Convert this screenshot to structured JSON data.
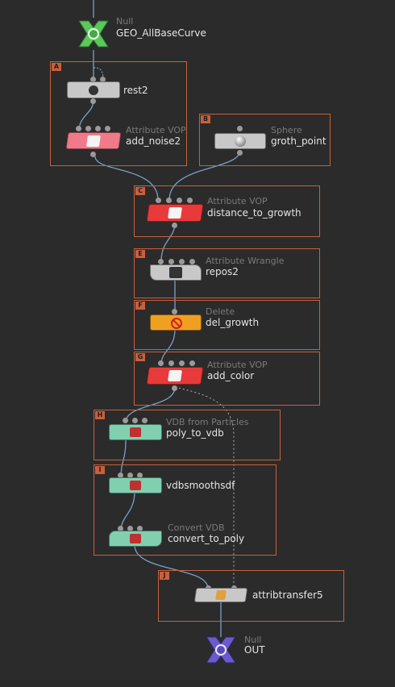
{
  "nodes": {
    "geo_allbasecurve": {
      "type": "Null",
      "name": "GEO_AllBaseCurve",
      "color": "#5ac85a"
    },
    "rest2": {
      "type": "",
      "name": "rest2",
      "color": "#c8c8c8"
    },
    "add_noise2": {
      "type": "Attribute VOP",
      "name": "add_noise2",
      "color": "#f07a8a"
    },
    "groth_point": {
      "type": "Sphere",
      "name": "groth_point",
      "color": "#c8c8c8"
    },
    "distance_to_growth": {
      "type": "Attribute VOP",
      "name": "distance_to_growth",
      "color": "#e83a3a"
    },
    "repos2": {
      "type": "Attribute Wrangle",
      "name": "repos2",
      "color": "#c8c8c8"
    },
    "del_growth": {
      "type": "Delete",
      "name": "del_growth",
      "color": "#f0a020"
    },
    "add_color": {
      "type": "Attribute VOP",
      "name": "add_color",
      "color": "#e83a3a"
    },
    "poly_to_vdb": {
      "type": "VDB from Particles",
      "name": "poly_to_vdb",
      "color": "#80d0b0"
    },
    "vdbsmoothsdf": {
      "type": "",
      "name": "vdbsmoothsdf",
      "color": "#80d0b0"
    },
    "convert_to_poly": {
      "type": "Convert VDB",
      "name": "convert_to_poly",
      "color": "#80d0b0"
    },
    "attribtransfer5": {
      "type": "",
      "name": "attribtransfer5",
      "color": "#c8c8c8"
    },
    "out": {
      "type": "Null",
      "name": "OUT",
      "color": "#6a5acd"
    }
  },
  "boxes": [
    {
      "label": "A"
    },
    {
      "label": "B"
    },
    {
      "label": "C"
    },
    {
      "label": "E"
    },
    {
      "label": "F"
    },
    {
      "label": "G"
    },
    {
      "label": "H"
    },
    {
      "label": "I"
    },
    {
      "label": "J"
    }
  ],
  "colors": {
    "background": "#2b2b2b",
    "box_border": "#c8603c",
    "wire": "#7aa0c8"
  }
}
